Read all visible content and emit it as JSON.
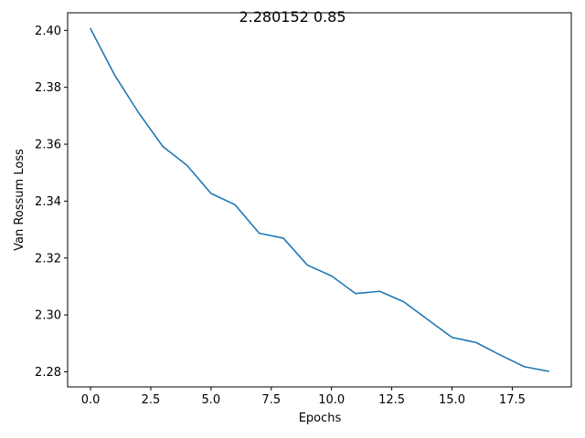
{
  "chart_data": {
    "type": "line",
    "title": "2.280152 0.85",
    "xlabel": "Epochs",
    "ylabel": "Van Rossum Loss",
    "xlim": [
      -0.95,
      19.95
    ],
    "ylim": [
      2.2747,
      2.4062
    ],
    "xticks": [
      0.0,
      2.5,
      5.0,
      7.5,
      10.0,
      12.5,
      15.0,
      17.5
    ],
    "xtick_labels": [
      "0.0",
      "2.5",
      "5.0",
      "7.5",
      "10.0",
      "12.5",
      "15.0",
      "17.5"
    ],
    "yticks": [
      2.28,
      2.3,
      2.32,
      2.34,
      2.36,
      2.38,
      2.4
    ],
    "ytick_labels": [
      "2.28",
      "2.30",
      "2.32",
      "2.34",
      "2.36",
      "2.38",
      "2.40"
    ],
    "grid": false,
    "series": [
      {
        "color": "#1f77b4",
        "x": [
          0,
          1,
          2,
          3,
          4,
          5,
          6,
          7,
          8,
          9,
          10,
          11,
          12,
          13,
          14,
          15,
          16,
          17,
          18,
          19
        ],
        "values": [
          2.4006,
          2.3843,
          2.371,
          2.3592,
          2.3526,
          2.3427,
          2.3387,
          2.3287,
          2.327,
          2.3175,
          2.3137,
          2.3075,
          2.3083,
          2.3046,
          2.2983,
          2.2921,
          2.2903,
          2.2859,
          2.2818,
          2.2802
        ]
      }
    ]
  }
}
